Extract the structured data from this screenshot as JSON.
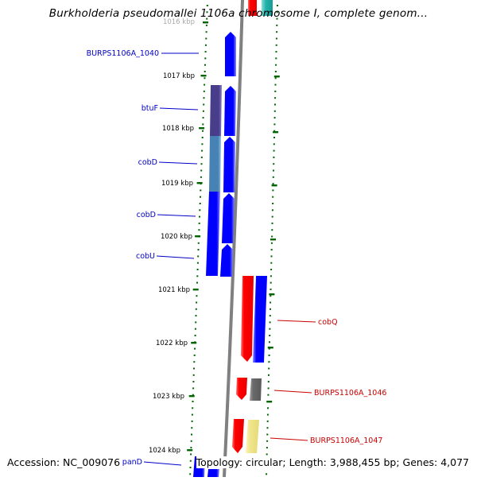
{
  "title": "Burkholderia pseudomallei 1106a chromosome I, complete genom...",
  "footer": {
    "accession": "Accession: NC_009076",
    "info": "Topology: circular; Length: 3,988,455 bp; Genes: 4,077"
  },
  "ticks": [
    "1016 kbp",
    "1017 kbp",
    "1018 kbp",
    "1019 kbp",
    "1020 kbp",
    "1021 kbp",
    "1022 kbp",
    "1023 kbp",
    "1024 kbp"
  ],
  "gene_labels_left": [
    "BURPS1106A_1040",
    "btuF",
    "cobD",
    "cobD",
    "cobU",
    "panD"
  ],
  "gene_labels_right": [
    "cobQ",
    "BURPS1106A_1046",
    "BURPS1106A_1047"
  ],
  "colors": {
    "forward_cds": "#0000ff",
    "reverse_cds": "#ff0000",
    "label_left": "#0000c8",
    "label_right": "#c80000",
    "tick": "#006400",
    "backbone": "#808080",
    "cog_dark": "#483d8b",
    "cog_steel": "#4682b4",
    "cog_gray": "#696969",
    "cog_khaki": "#f0e68c",
    "cog_teal": "#20b2aa"
  }
}
